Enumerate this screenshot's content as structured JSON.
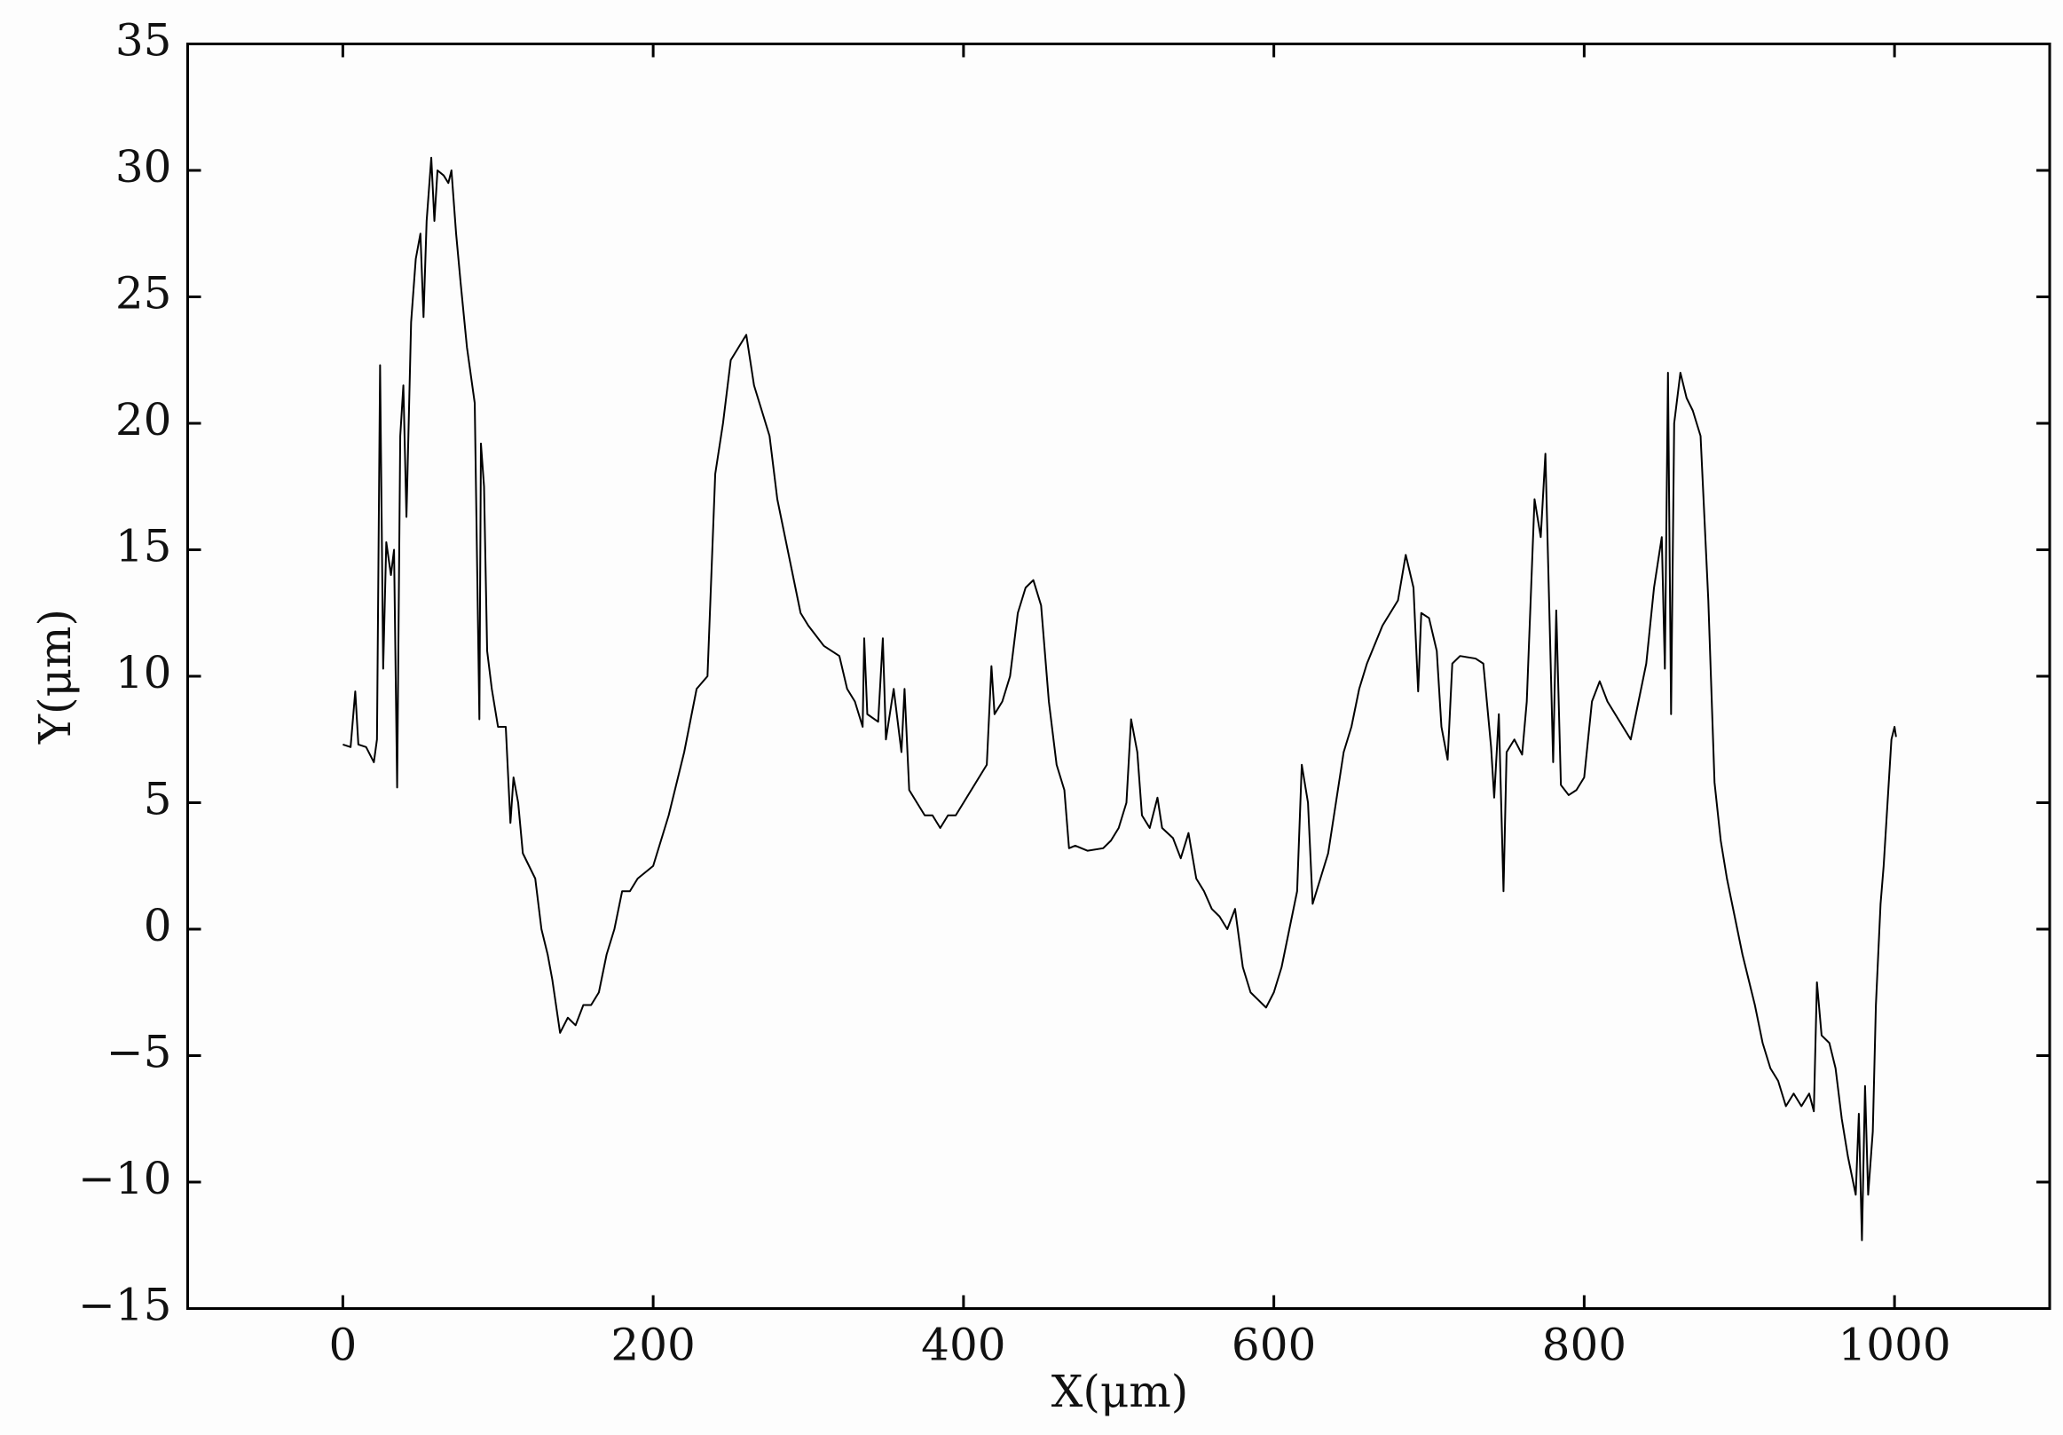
{
  "chart_data": {
    "type": "line",
    "x_label": "X(μm)",
    "y_label": "Y(μm)",
    "xlim": [
      -100,
      1100
    ],
    "ylim": [
      -15,
      35
    ],
    "xticks": [
      0,
      200,
      400,
      600,
      800,
      1000
    ],
    "yticks": [
      {
        "value": -15,
        "label": "−15"
      },
      {
        "value": -10,
        "label": "−10"
      },
      {
        "value": -5,
        "label": "−5"
      },
      0,
      5,
      10,
      15,
      20,
      25,
      30,
      35
    ],
    "color": "#000000",
    "x": [
      0,
      5,
      8,
      10,
      15,
      20,
      22,
      24,
      26,
      28,
      31,
      33,
      35,
      37,
      39,
      41,
      44,
      47,
      50,
      52,
      54,
      57,
      59,
      61,
      65,
      68,
      70,
      73,
      76,
      80,
      85,
      88,
      89,
      91,
      93,
      96,
      100,
      105,
      108,
      110,
      113,
      116,
      120,
      124,
      128,
      132,
      135,
      140,
      145,
      150,
      155,
      160,
      165,
      170,
      175,
      180,
      185,
      190,
      200,
      210,
      220,
      228,
      235,
      240,
      245,
      250,
      255,
      260,
      265,
      270,
      275,
      280,
      290,
      295,
      300,
      310,
      320,
      325,
      330,
      335,
      336,
      338,
      345,
      348,
      350,
      355,
      360,
      362,
      365,
      370,
      375,
      380,
      385,
      390,
      395,
      400,
      405,
      410,
      415,
      418,
      420,
      425,
      430,
      435,
      440,
      445,
      450,
      455,
      460,
      465,
      468,
      472,
      480,
      490,
      495,
      500,
      505,
      508,
      512,
      515,
      520,
      525,
      528,
      535,
      540,
      545,
      550,
      555,
      560,
      565,
      570,
      575,
      580,
      585,
      590,
      595,
      600,
      605,
      610,
      615,
      618,
      622,
      625,
      630,
      635,
      640,
      645,
      650,
      655,
      660,
      670,
      680,
      685,
      690,
      693,
      695,
      700,
      705,
      708,
      712,
      715,
      720,
      730,
      735,
      740,
      742,
      745,
      748,
      750,
      755,
      760,
      763,
      768,
      772,
      775,
      780,
      782,
      785,
      790,
      795,
      800,
      805,
      810,
      815,
      820,
      825,
      830,
      835,
      840,
      845,
      850,
      852,
      854,
      856,
      858,
      862,
      866,
      870,
      875,
      880,
      884,
      888,
      892,
      897,
      902,
      906,
      910,
      915,
      920,
      925,
      930,
      935,
      940,
      945,
      948,
      950,
      953,
      958,
      962,
      966,
      970,
      975,
      977,
      979,
      981,
      983,
      986,
      988,
      991,
      993,
      996,
      998,
      1000,
      1001
    ],
    "values": [
      7.3,
      7.2,
      9.4,
      7.3,
      7.2,
      6.6,
      7.5,
      22.3,
      10.3,
      15.3,
      14.0,
      15.0,
      5.6,
      19.5,
      21.5,
      16.3,
      24,
      26.5,
      27.5,
      24.2,
      28,
      30.5,
      28,
      30,
      29.8,
      29.5,
      30,
      27.5,
      25.5,
      23,
      20.8,
      8.3,
      19.2,
      17.5,
      11,
      9.5,
      8,
      8,
      4.2,
      6,
      5,
      3,
      2.5,
      2,
      0,
      -1,
      -2,
      -4.1,
      -3.5,
      -3.8,
      -3,
      -3,
      -2.5,
      -1,
      0,
      1.5,
      1.5,
      2,
      2.5,
      4.5,
      7,
      9.5,
      10,
      18,
      20,
      22.5,
      23,
      23.5,
      21.5,
      20.5,
      19.5,
      17,
      14,
      12.5,
      12,
      11.2,
      10.8,
      9.5,
      9,
      8,
      11.5,
      8.5,
      8.2,
      11.5,
      7.5,
      9.5,
      7,
      9.5,
      5.5,
      5,
      4.5,
      4.5,
      4,
      4.5,
      4.5,
      5,
      5.5,
      6,
      6.5,
      10.4,
      8.5,
      9,
      10,
      12.5,
      13.5,
      13.8,
      12.8,
      9,
      6.5,
      5.5,
      3.2,
      3.3,
      3.1,
      3.2,
      3.5,
      4,
      5,
      8.3,
      7,
      4.5,
      4,
      5.2,
      4,
      3.6,
      2.8,
      3.8,
      2,
      1.5,
      0.8,
      0.5,
      0,
      0.8,
      -1.5,
      -2.5,
      -2.8,
      -3.1,
      -2.5,
      -1.5,
      0,
      1.5,
      6.5,
      5,
      1,
      2,
      3,
      5,
      7,
      8,
      9.5,
      10.5,
      12,
      13,
      14.8,
      13.5,
      9.4,
      12.5,
      12.3,
      11,
      8,
      6.7,
      10.5,
      10.8,
      10.7,
      10.5,
      7.2,
      5.2,
      8.5,
      1.5,
      7,
      7.5,
      6.9,
      9,
      17,
      15.5,
      18.8,
      6.6,
      12.6,
      5.7,
      5.3,
      5.5,
      6,
      9,
      9.8,
      9,
      8.5,
      8,
      7.5,
      9,
      10.5,
      13.5,
      15.5,
      10.3,
      22,
      8.5,
      20,
      22,
      21,
      20.5,
      19.5,
      13,
      5.8,
      3.5,
      2,
      0.5,
      -1,
      -2,
      -3,
      -4.5,
      -5.5,
      -6,
      -7,
      -6.5,
      -7,
      -6.5,
      -7.2,
      -2.1,
      -4.2,
      -4.5,
      -5.5,
      -7.5,
      -9,
      -10.5,
      -7.3,
      -12.3,
      -6.2,
      -10.5,
      -8,
      -3,
      1,
      2.5,
      5.5,
      7.5,
      8,
      7.6
    ]
  }
}
